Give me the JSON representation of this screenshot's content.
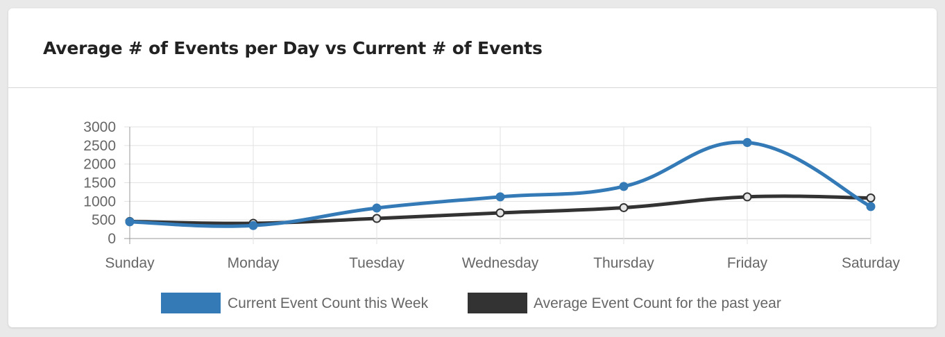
{
  "card": {
    "title": "Average # of Events per Day vs Current # of Events"
  },
  "chart_data": {
    "type": "line",
    "title": "Average # of Events per Day vs Current # of Events",
    "categories": [
      "Sunday",
      "Monday",
      "Tuesday",
      "Wednesday",
      "Thursday",
      "Friday",
      "Saturday"
    ],
    "ylim": [
      0,
      3000
    ],
    "yticks": [
      0,
      500,
      1000,
      1500,
      2000,
      2500,
      3000
    ],
    "grid": true,
    "legend_position": "bottom",
    "series": [
      {
        "name": "Current Event Count this Week",
        "color": "#337ab7",
        "values": [
          450,
          350,
          820,
          1120,
          1400,
          2580,
          860
        ]
      },
      {
        "name": "Average Event Count for the past year",
        "color": "#333333",
        "values": [
          460,
          410,
          540,
          690,
          830,
          1120,
          1090
        ]
      }
    ]
  }
}
